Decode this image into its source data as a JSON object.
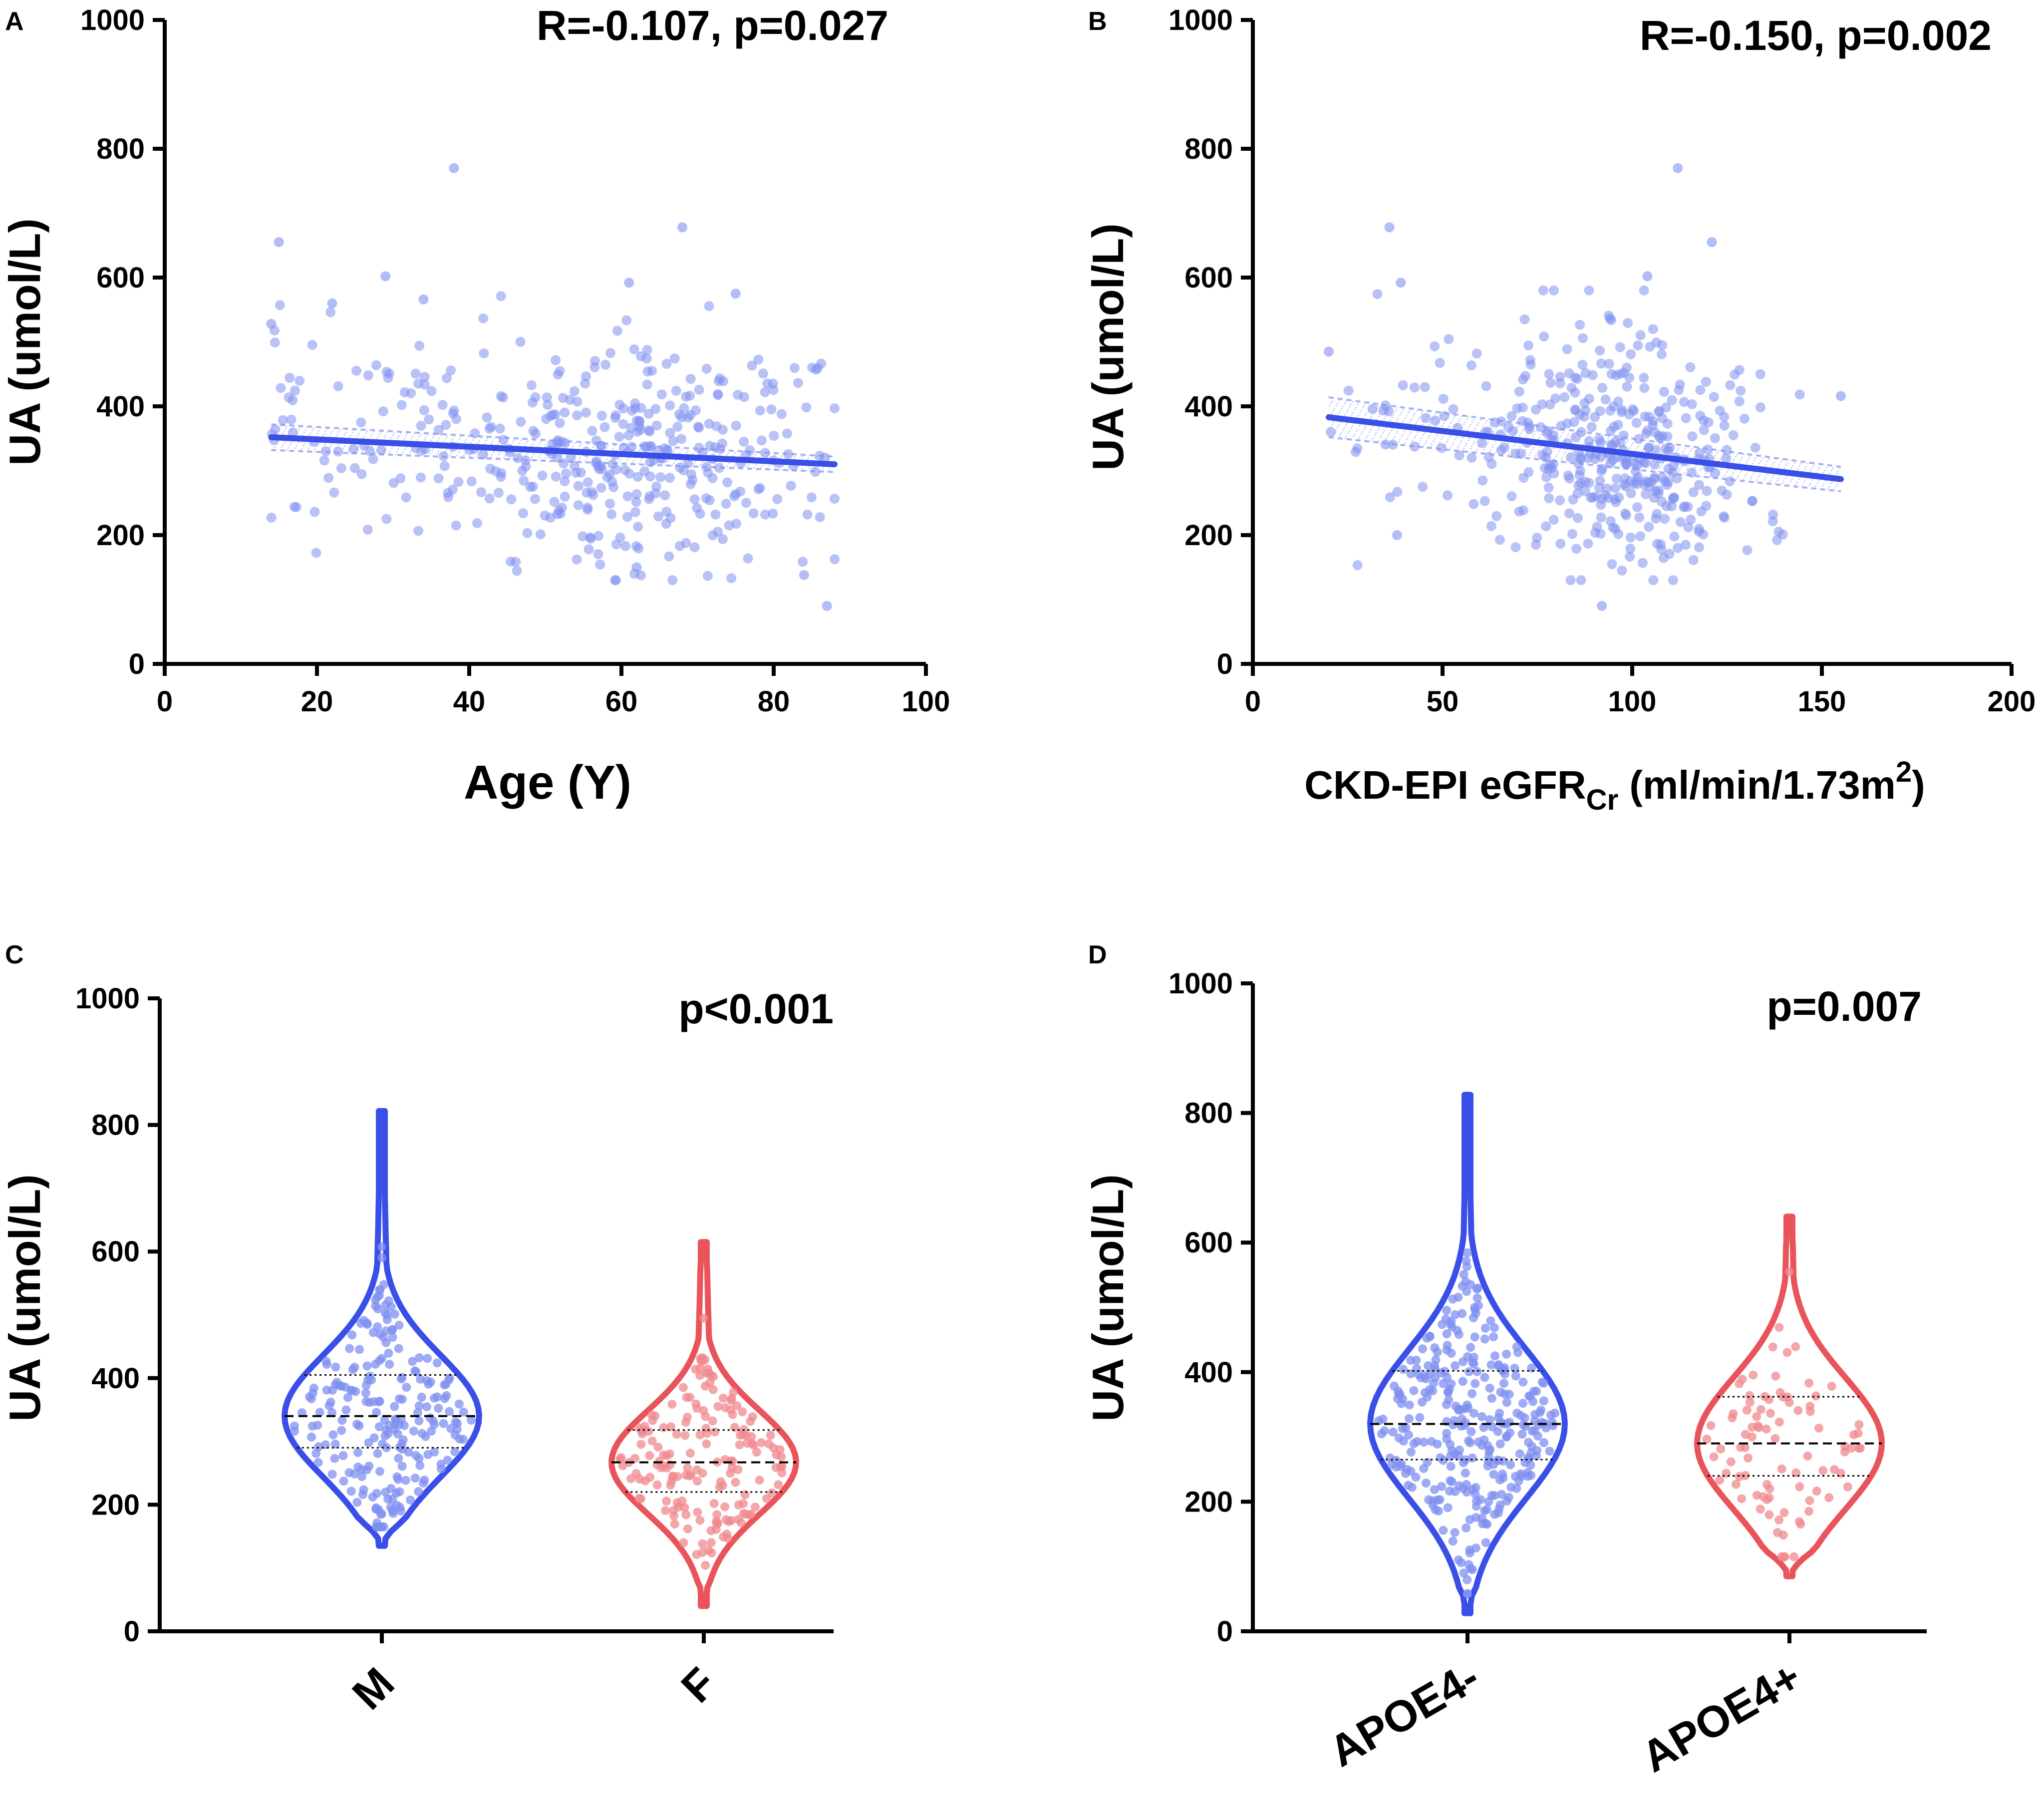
{
  "panels": {
    "A": {
      "label": "A",
      "annotation": "R=-0.107, p=0.027",
      "xlabel": "Age (Y)",
      "ylabel": "UA (umol/L)"
    },
    "B": {
      "label": "B",
      "annotation": "R=-0.150, p=0.002",
      "xlabel_main": "CKD-EPI eGFR",
      "xlabel_sub": "Cr",
      "xlabel_tail": " (ml/min/1.73m",
      "xlabel_sup": "2",
      "xlabel_end": ")",
      "ylabel": "UA (umol/L)"
    },
    "C": {
      "label": "C",
      "annotation": "p<0.001",
      "ylabel": "UA (umol/L)"
    },
    "D": {
      "label": "D",
      "annotation": "p=0.007",
      "ylabel": "UA (umol/L)"
    }
  },
  "colors": {
    "blue": "#3a4fe8",
    "blue_point": "#7f8ff0",
    "red": "#e8545a",
    "red_point": "#f08a8e",
    "axis": "#000000"
  },
  "chart_data": [
    {
      "id": "A",
      "type": "scatter",
      "title": "R=-0.107, p=0.027",
      "xlabel": "Age (Y)",
      "ylabel": "UA (umol/L)",
      "xlim": [
        0,
        100
      ],
      "ylim": [
        0,
        1000
      ],
      "xticks": [
        0,
        20,
        40,
        60,
        80,
        100
      ],
      "yticks": [
        0,
        200,
        400,
        600,
        800,
        1000
      ],
      "n_points_approx": 420,
      "x_range_observed": [
        14,
        88
      ],
      "y_range_observed": [
        90,
        770
      ],
      "fit_line": {
        "x": [
          14,
          88
        ],
        "y": [
          352,
          310
        ]
      },
      "ci_band": {
        "x": [
          14,
          88
        ],
        "lower": [
          332,
          298
        ],
        "upper": [
          372,
          322
        ]
      },
      "highlighted_points": [
        {
          "x": 15,
          "y": 655
        },
        {
          "x": 38,
          "y": 770
        },
        {
          "x": 68,
          "y": 678
        },
        {
          "x": 29,
          "y": 602
        },
        {
          "x": 61,
          "y": 592
        },
        {
          "x": 87,
          "y": 90
        },
        {
          "x": 62,
          "y": 150
        },
        {
          "x": 84,
          "y": 138
        },
        {
          "x": 75,
          "y": 575
        },
        {
          "x": 34,
          "y": 566
        },
        {
          "x": 22,
          "y": 560
        },
        {
          "x": 14,
          "y": 528
        }
      ]
    },
    {
      "id": "B",
      "type": "scatter",
      "title": "R=-0.150, p=0.002",
      "xlabel": "CKD-EPI eGFRCr (ml/min/1.73m2)",
      "ylabel": "UA (umol/L)",
      "xlim": [
        0,
        200
      ],
      "ylim": [
        0,
        1000
      ],
      "xticks": [
        0,
        50,
        100,
        150,
        200
      ],
      "yticks": [
        0,
        200,
        400,
        600,
        800,
        1000
      ],
      "n_points_approx": 420,
      "x_range_observed": [
        20,
        155
      ],
      "y_range_observed": [
        90,
        770
      ],
      "fit_line": {
        "x": [
          20,
          155
        ],
        "y": [
          383,
          287
        ]
      },
      "ci_band": {
        "x": [
          20,
          155
        ],
        "lower": [
          352,
          268
        ],
        "upper": [
          414,
          306
        ]
      },
      "highlighted_points": [
        {
          "x": 112,
          "y": 770
        },
        {
          "x": 36,
          "y": 678
        },
        {
          "x": 121,
          "y": 655
        },
        {
          "x": 39,
          "y": 592
        },
        {
          "x": 104,
          "y": 602
        },
        {
          "x": 92,
          "y": 90
        },
        {
          "x": 38,
          "y": 200
        },
        {
          "x": 20,
          "y": 485
        },
        {
          "x": 155,
          "y": 416
        }
      ]
    },
    {
      "id": "C",
      "type": "violin",
      "title": "p<0.001",
      "ylabel": "UA (umol/L)",
      "ylim": [
        0,
        1000
      ],
      "yticks": [
        0,
        200,
        400,
        600,
        800,
        1000
      ],
      "categories": [
        "M",
        "F"
      ],
      "series": [
        {
          "name": "M",
          "color": "#3a4fe8",
          "min": 135,
          "max": 822,
          "q1": 290,
          "median": 340,
          "q3": 405,
          "n_approx": 230
        },
        {
          "name": "F",
          "color": "#e8545a",
          "min": 40,
          "max": 615,
          "q1": 220,
          "median": 267,
          "q3": 318,
          "n_approx": 180
        }
      ]
    },
    {
      "id": "D",
      "type": "violin",
      "title": "p=0.007",
      "ylabel": "UA (umol/L)",
      "ylim": [
        0,
        1000
      ],
      "yticks": [
        0,
        200,
        400,
        600,
        800,
        1000
      ],
      "categories": [
        "APOE4-",
        "APOE4+"
      ],
      "series": [
        {
          "name": "APOE4-",
          "color": "#3a4fe8",
          "min": 28,
          "max": 828,
          "q1": 265,
          "median": 320,
          "q3": 402,
          "n_approx": 330
        },
        {
          "name": "APOE4+",
          "color": "#e8545a",
          "min": 85,
          "max": 640,
          "q1": 240,
          "median": 290,
          "q3": 362,
          "n_approx": 90
        }
      ]
    }
  ]
}
